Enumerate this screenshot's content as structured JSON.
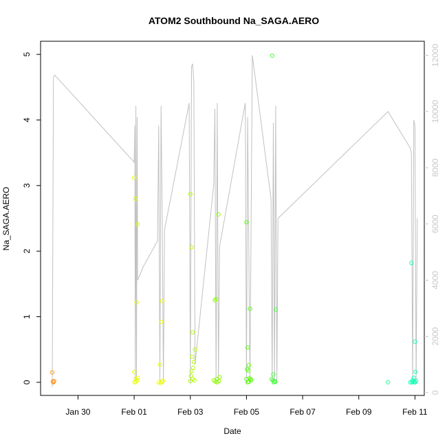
{
  "chart_data": {
    "type": "scatter",
    "title": "ATOM2 Southbound Na_SAGA.AERO",
    "xlabel": "Date",
    "ylabel": "Na_SAGA.AERO",
    "xlim": [
      "2016-01-28T16:00",
      "2016-02-11T08:00"
    ],
    "ylim": [
      -0.2,
      5.2
    ],
    "y2lim": [
      -100,
      12500
    ],
    "grid": false,
    "legend": "none",
    "x_ticks": [
      {
        "date": "2016-01-30T00:00",
        "label": "Jan 30"
      },
      {
        "date": "2016-02-01T00:00",
        "label": "Feb 01"
      },
      {
        "date": "2016-02-03T00:00",
        "label": "Feb 03"
      },
      {
        "date": "2016-02-05T00:00",
        "label": "Feb 05"
      },
      {
        "date": "2016-02-07T00:00",
        "label": "Feb 07"
      },
      {
        "date": "2016-02-09T00:00",
        "label": "Feb 09"
      },
      {
        "date": "2016-02-11T00:00",
        "label": "Feb 11"
      }
    ],
    "y_ticks": [
      {
        "value": 0,
        "label": "0"
      },
      {
        "value": 1,
        "label": "1"
      },
      {
        "value": 2,
        "label": "2"
      },
      {
        "value": 3,
        "label": "3"
      },
      {
        "value": 4,
        "label": "4"
      },
      {
        "value": 5,
        "label": "5"
      }
    ],
    "y2_ticks": [
      {
        "value": 0,
        "label": "0"
      },
      {
        "value": 2000,
        "label": "2000"
      },
      {
        "value": 4000,
        "label": "4000"
      },
      {
        "value": 6000,
        "label": "6000"
      },
      {
        "value": 8000,
        "label": "8000"
      },
      {
        "value": 10000,
        "label": "10000"
      },
      {
        "value": 12000,
        "label": "12000"
      }
    ],
    "colors": {
      "altitude_line": "#c0c0c0",
      "right_axis": "#c8c8c8",
      "color_scale_start": "#ff8c00",
      "color_scale_mid": "#e6ff00",
      "color_scale_end": "#00ffc8"
    },
    "points": [
      {
        "x": "2016-01-29T02:00",
        "y": 0.15,
        "color": "#ff9418"
      },
      {
        "x": "2016-01-29T02:30",
        "y": 0.01,
        "color": "#ff9418"
      },
      {
        "x": "2016-01-29T03:00",
        "y": 0.0,
        "color": "#ff9418"
      },
      {
        "x": "2016-01-29T03:30",
        "y": 0.02,
        "color": "#ff9418"
      },
      {
        "x": "2016-02-01T00:00",
        "y": 3.12,
        "color": "#e6ff00"
      },
      {
        "x": "2016-02-01T01:00",
        "y": 2.8,
        "color": "#e6ff00"
      },
      {
        "x": "2016-02-01T03:00",
        "y": 2.41,
        "color": "#e6ff00"
      },
      {
        "x": "2016-02-01T02:00",
        "y": 1.22,
        "color": "#e6ff00"
      },
      {
        "x": "2016-02-01T00:00",
        "y": 0.16,
        "color": "#e6ff00"
      },
      {
        "x": "2016-02-01T01:00",
        "y": 0.05,
        "color": "#e6ff00"
      },
      {
        "x": "2016-02-01T03:00",
        "y": 0.07,
        "color": "#e6ff00"
      },
      {
        "x": "2016-02-01T00:30",
        "y": 0.0,
        "color": "#e6ff00"
      },
      {
        "x": "2016-02-01T01:30",
        "y": 0.01,
        "color": "#e6ff00"
      },
      {
        "x": "2016-02-01T02:30",
        "y": 0.03,
        "color": "#e6ff00"
      },
      {
        "x": "2016-02-01T22:00",
        "y": 0.27,
        "color": "#ecff00"
      },
      {
        "x": "2016-02-01T23:00",
        "y": 0.92,
        "color": "#ecff00"
      },
      {
        "x": "2016-02-02T00:00",
        "y": 1.24,
        "color": "#ecff00"
      },
      {
        "x": "2016-02-01T21:00",
        "y": 0.0,
        "color": "#ecff00"
      },
      {
        "x": "2016-02-01T22:30",
        "y": -0.01,
        "color": "#ecff00"
      },
      {
        "x": "2016-02-01T23:30",
        "y": 0.01,
        "color": "#ecff00"
      },
      {
        "x": "2016-02-02T00:30",
        "y": 0.02,
        "color": "#ecff00"
      },
      {
        "x": "2016-02-03T00:00",
        "y": 2.87,
        "color": "#b4ff00"
      },
      {
        "x": "2016-02-03T01:00",
        "y": 2.06,
        "color": "#b4ff00"
      },
      {
        "x": "2016-02-03T02:00",
        "y": 0.76,
        "color": "#b4ff00"
      },
      {
        "x": "2016-02-03T04:00",
        "y": 0.5,
        "color": "#b4ff00"
      },
      {
        "x": "2016-02-03T01:30",
        "y": 0.39,
        "color": "#b4ff00"
      },
      {
        "x": "2016-02-03T03:00",
        "y": 0.31,
        "color": "#b4ff00"
      },
      {
        "x": "2016-02-03T02:30",
        "y": 0.22,
        "color": "#b4ff00"
      },
      {
        "x": "2016-02-03T01:00",
        "y": 0.17,
        "color": "#b4ff00"
      },
      {
        "x": "2016-02-03T00:30",
        "y": 0.1,
        "color": "#b4ff00"
      },
      {
        "x": "2016-02-03T02:00",
        "y": 0.05,
        "color": "#b4ff00"
      },
      {
        "x": "2016-02-03T03:30",
        "y": 0.03,
        "color": "#b4ff00"
      },
      {
        "x": "2016-02-03T00:00",
        "y": 0.02,
        "color": "#b4ff00"
      },
      {
        "x": "2016-02-03T21:00",
        "y": 1.25,
        "color": "#8cff00"
      },
      {
        "x": "2016-02-03T22:00",
        "y": 1.27,
        "color": "#8cff00"
      },
      {
        "x": "2016-02-04T00:00",
        "y": 2.56,
        "color": "#8cff00"
      },
      {
        "x": "2016-02-04T01:00",
        "y": 0.08,
        "color": "#8cff00"
      },
      {
        "x": "2016-02-03T20:00",
        "y": 0.03,
        "color": "#8cff00"
      },
      {
        "x": "2016-02-03T21:30",
        "y": 0.01,
        "color": "#8cff00"
      },
      {
        "x": "2016-02-03T23:00",
        "y": 0.0,
        "color": "#8cff00"
      },
      {
        "x": "2016-02-04T00:30",
        "y": 0.02,
        "color": "#8cff00"
      },
      {
        "x": "2016-02-03T22:30",
        "y": 0.05,
        "color": "#8cff00"
      },
      {
        "x": "2016-02-05T00:00",
        "y": 2.44,
        "color": "#5aff0a"
      },
      {
        "x": "2016-02-05T03:00",
        "y": 1.12,
        "color": "#5aff0a"
      },
      {
        "x": "2016-02-05T01:00",
        "y": 0.53,
        "color": "#5aff0a"
      },
      {
        "x": "2016-02-05T02:00",
        "y": 0.26,
        "color": "#5aff0a"
      },
      {
        "x": "2016-02-05T00:30",
        "y": 0.2,
        "color": "#5aff0a"
      },
      {
        "x": "2016-02-05T01:30",
        "y": 0.18,
        "color": "#5aff0a"
      },
      {
        "x": "2016-02-05T02:30",
        "y": 0.06,
        "color": "#5aff0a"
      },
      {
        "x": "2016-02-05T00:00",
        "y": 0.05,
        "color": "#5aff0a"
      },
      {
        "x": "2016-02-05T03:30",
        "y": 0.05,
        "color": "#5aff0a"
      },
      {
        "x": "2016-02-05T04:00",
        "y": 0.03,
        "color": "#5aff0a"
      },
      {
        "x": "2016-02-05T01:00",
        "y": 0.0,
        "color": "#5aff0a"
      },
      {
        "x": "2016-02-05T02:00",
        "y": 0.01,
        "color": "#5aff0a"
      },
      {
        "x": "2016-02-05T22:00",
        "y": 4.98,
        "color": "#46ff3c"
      },
      {
        "x": "2016-02-06T01:00",
        "y": 1.11,
        "color": "#46ff3c"
      },
      {
        "x": "2016-02-05T23:00",
        "y": 0.12,
        "color": "#46ff3c"
      },
      {
        "x": "2016-02-05T21:30",
        "y": 0.05,
        "color": "#46ff3c"
      },
      {
        "x": "2016-02-05T22:30",
        "y": 0.03,
        "color": "#46ff3c"
      },
      {
        "x": "2016-02-06T00:00",
        "y": 0.02,
        "color": "#46ff3c"
      },
      {
        "x": "2016-02-05T23:30",
        "y": 0.0,
        "color": "#46ff3c"
      },
      {
        "x": "2016-02-06T00:30",
        "y": 0.01,
        "color": "#46ff3c"
      },
      {
        "x": "2016-02-10T01:00",
        "y": 0.0,
        "color": "#28ff8c"
      },
      {
        "x": "2016-02-10T21:00",
        "y": 1.82,
        "color": "#14ffb4"
      },
      {
        "x": "2016-02-11T00:00",
        "y": 0.62,
        "color": "#14ffb4"
      },
      {
        "x": "2016-02-11T00:30",
        "y": 0.16,
        "color": "#14ffb4"
      },
      {
        "x": "2016-02-10T23:00",
        "y": 0.07,
        "color": "#14ffb4"
      },
      {
        "x": "2016-02-10T22:00",
        "y": 0.03,
        "color": "#14ffb4"
      },
      {
        "x": "2016-02-10T20:00",
        "y": 0.0,
        "color": "#14ffb4"
      },
      {
        "x": "2016-02-10T21:30",
        "y": 0.0,
        "color": "#14ffb4"
      },
      {
        "x": "2016-02-10T22:30",
        "y": 0.01,
        "color": "#14ffb4"
      },
      {
        "x": "2016-02-10T23:30",
        "y": 0.0,
        "color": "#14ffb4"
      },
      {
        "x": "2016-02-11T00:00",
        "y": 0.0,
        "color": "#14ffb4"
      },
      {
        "x": "2016-02-11T01:00",
        "y": 0.02,
        "color": "#14ffb4"
      }
    ],
    "altitude_series": {
      "name": "",
      "axis": "right",
      "points": [
        [
          "2016-01-29T02:00",
          200
        ],
        [
          "2016-01-29T03:00",
          11200
        ],
        [
          "2016-01-29T04:00",
          11300
        ],
        [
          "2016-02-01T00:00",
          8200
        ],
        [
          "2016-02-01T00:30",
          9500
        ],
        [
          "2016-02-01T01:00",
          400
        ],
        [
          "2016-02-01T01:30",
          10200
        ],
        [
          "2016-02-01T02:00",
          500
        ],
        [
          "2016-02-01T02:30",
          9800
        ],
        [
          "2016-02-01T03:00",
          4000
        ],
        [
          "2016-02-01T08:00",
          4500
        ],
        [
          "2016-02-01T20:00",
          5400
        ],
        [
          "2016-02-01T21:00",
          9500
        ],
        [
          "2016-02-01T22:00",
          300
        ],
        [
          "2016-02-01T23:00",
          10200
        ],
        [
          "2016-02-02T00:00",
          6200
        ],
        [
          "2016-02-02T01:00",
          300
        ],
        [
          "2016-02-02T02:00",
          5800
        ],
        [
          "2016-02-02T23:00",
          10300
        ],
        [
          "2016-02-03T00:00",
          300
        ],
        [
          "2016-02-03T01:00",
          11600
        ],
        [
          "2016-02-03T02:00",
          11700
        ],
        [
          "2016-02-03T03:00",
          11000
        ],
        [
          "2016-02-03T04:00",
          1000
        ],
        [
          "2016-02-03T20:00",
          7400
        ],
        [
          "2016-02-03T21:00",
          10100
        ],
        [
          "2016-02-03T22:00",
          300
        ],
        [
          "2016-02-03T23:00",
          10300
        ],
        [
          "2016-02-04T00:00",
          400
        ],
        [
          "2016-02-04T01:00",
          5200
        ],
        [
          "2016-02-04T23:00",
          10300
        ],
        [
          "2016-02-05T00:00",
          300
        ],
        [
          "2016-02-05T01:00",
          9800
        ],
        [
          "2016-02-05T03:00",
          400
        ],
        [
          "2016-02-05T05:00",
          12000
        ],
        [
          "2016-02-05T21:00",
          6900
        ],
        [
          "2016-02-05T22:00",
          300
        ],
        [
          "2016-02-05T23:00",
          9600
        ],
        [
          "2016-02-06T00:00",
          400
        ],
        [
          "2016-02-06T01:00",
          10200
        ],
        [
          "2016-02-06T02:00",
          300
        ],
        [
          "2016-02-06T03:00",
          6200
        ],
        [
          "2016-02-10T01:00",
          10000
        ],
        [
          "2016-02-10T20:00",
          8700
        ],
        [
          "2016-02-10T21:00",
          8500
        ],
        [
          "2016-02-10T22:00",
          300
        ],
        [
          "2016-02-10T23:00",
          9700
        ],
        [
          "2016-02-11T00:00",
          9500
        ],
        [
          "2016-02-11T01:00",
          400
        ],
        [
          "2016-02-11T02:00",
          6200
        ]
      ]
    }
  }
}
